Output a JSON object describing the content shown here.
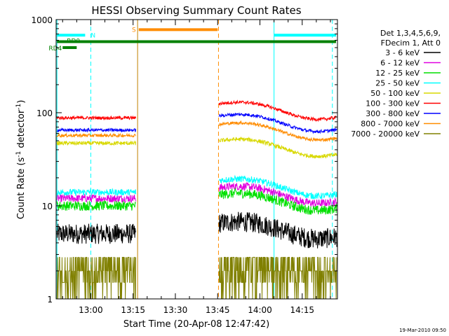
{
  "chart_data": {
    "type": "line",
    "title": "HESSI Observing Summary Count Rates",
    "xlabel": "Start Time (20-Apr-08 12:47:42)",
    "ylabel_main": "Count Rate (s",
    "ylabel_sup1": "-1",
    "ylabel_mid": " detector",
    "ylabel_sup2": "-1",
    "ylabel_end": ")",
    "yscale": "log",
    "ylim": [
      1,
      1000
    ],
    "xlim_minutes": [
      47.7,
      147.5
    ],
    "x_ticks": [
      {
        "label": "13:00",
        "minutes": 60
      },
      {
        "label": "13:15",
        "minutes": 75
      },
      {
        "label": "13:30",
        "minutes": 90
      },
      {
        "label": "13:45",
        "minutes": 105
      },
      {
        "label": "14:00",
        "minutes": 120
      },
      {
        "label": "14:15",
        "minutes": 135
      }
    ],
    "y_ticks": [
      {
        "label": "1",
        "value": 1
      },
      {
        "label": "10",
        "value": 10
      },
      {
        "label": "100",
        "value": 100
      },
      {
        "label": "1000",
        "value": 1000
      }
    ],
    "legend_header": [
      "Det 1,3,4,5,6,9,",
      "FDecim 1, Att 0"
    ],
    "series": [
      {
        "name": "3 - 6 keV",
        "color": "#000000",
        "seg1": 5.0,
        "seg2": 5.2,
        "noise": 0.25
      },
      {
        "name": "6 - 12 keV",
        "color": "#e000e0",
        "seg1": 12.0,
        "seg2": 12.5,
        "noise": 0.1
      },
      {
        "name": "12 - 25 keV",
        "color": "#00e000",
        "seg1": 10.0,
        "seg2": 10.5,
        "noise": 0.12
      },
      {
        "name": "25 - 50 keV",
        "color": "#00ffff",
        "seg1": 14.0,
        "seg2": 15.0,
        "noise": 0.08
      },
      {
        "name": "50 - 100 keV",
        "color": "#d8d800",
        "seg1": 47.0,
        "seg2": 40.0,
        "noise": 0.05
      },
      {
        "name": "100 - 300 keV",
        "color": "#ff0000",
        "seg1": 88.0,
        "seg2": 100.0,
        "noise": 0.04
      },
      {
        "name": "300 - 800 keV",
        "color": "#0000ff",
        "seg1": 65.0,
        "seg2": 74.0,
        "noise": 0.04
      },
      {
        "name": "800 - 7000 keV",
        "color": "#ff8c00",
        "seg1": 57.0,
        "seg2": 60.0,
        "noise": 0.04
      },
      {
        "name": "7000 - 20000 keV",
        "color": "#808000",
        "seg1": 2.0,
        "seg2": 2.0,
        "noise": 0.5
      }
    ],
    "data_intervals_minutes": [
      [
        48.0,
        76.0
      ],
      [
        105.5,
        147.3
      ]
    ],
    "flags": [
      {
        "label": "N",
        "color": "#00ffff",
        "bars": [
          [
            48.0,
            58.0
          ],
          [
            125.0,
            147.0
          ]
        ],
        "value": 680
      },
      {
        "label": "S",
        "color": "#ff8c00",
        "bars": [
          [
            77.0,
            105.0
          ]
        ],
        "value": 780
      },
      {
        "label": "RD0",
        "color": "#008000",
        "bars": [
          [
            48.0,
            147.0
          ]
        ],
        "value": 580
      },
      {
        "label": "RD4",
        "color": "#008000",
        "bars": [
          [
            50.0,
            55.0
          ]
        ],
        "value": 500
      }
    ],
    "vlines": [
      {
        "minutes": 48.0,
        "color": "#00ffff",
        "style": "solid"
      },
      {
        "minutes": 60.0,
        "color": "#00ffff",
        "style": "dashed"
      },
      {
        "minutes": 76.6,
        "color": "#c08000",
        "style": "solid"
      },
      {
        "minutes": 105.3,
        "color": "#ff8c00",
        "style": "dashed"
      },
      {
        "minutes": 125.0,
        "color": "#00ffff",
        "style": "solid"
      },
      {
        "minutes": 145.7,
        "color": "#00ffff",
        "style": "dashed"
      }
    ],
    "grid": false,
    "legend_position": "right"
  },
  "footer_date": "19-Mar-2010 09:50"
}
